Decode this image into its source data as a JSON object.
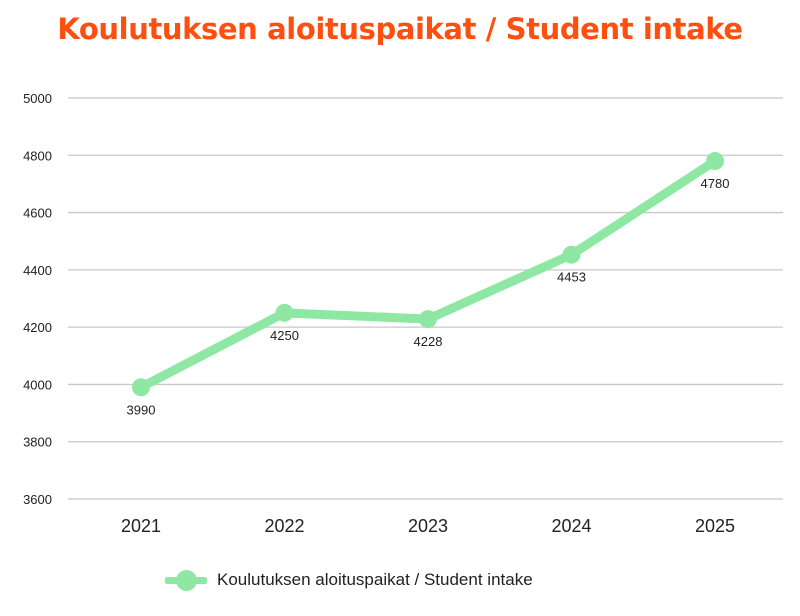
{
  "title": "Koulutuksen aloituspaikat / Student intake",
  "colors": {
    "title": "#FF4F0E",
    "series": "#8EE8A4",
    "grid": "#C8C8C8",
    "text": "#222222"
  },
  "chart_data": {
    "type": "line",
    "title": "Koulutuksen aloituspaikat / Student intake",
    "xlabel": "",
    "ylabel": "",
    "categories": [
      "2021",
      "2022",
      "2023",
      "2024",
      "2025"
    ],
    "series": [
      {
        "name": "Koulutuksen aloituspaikat / Student intake",
        "values": [
          3990,
          4250,
          4228,
          4453,
          4780
        ]
      }
    ],
    "ylim": [
      3600,
      5000
    ],
    "yticks": [
      "3600",
      "3800",
      "4000",
      "4200",
      "4400",
      "4600",
      "4800",
      "5000"
    ],
    "data_labels": [
      "3990",
      "4250",
      "4228",
      "4453",
      "4780"
    ],
    "grid": true,
    "legend": "bottom"
  }
}
